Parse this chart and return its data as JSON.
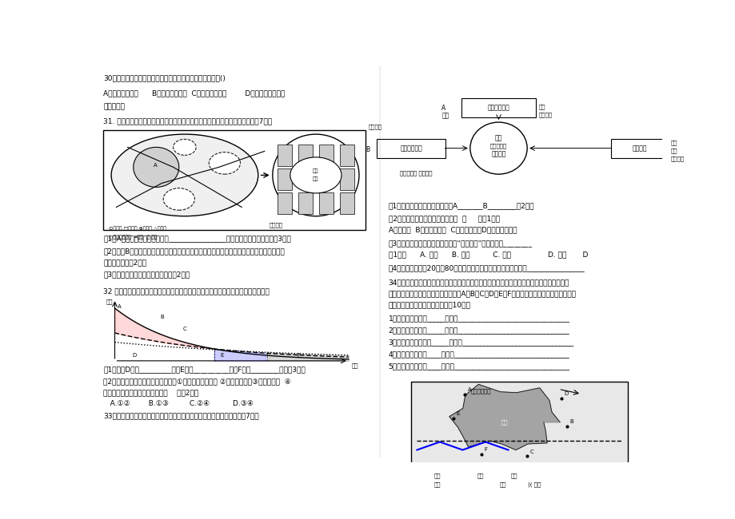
{
  "bg_color": "#ffffff",
  "text_color": "#000000",
  "page_width": 9.2,
  "page_height": 6.5,
  "q34_list": [
    "1、钉鐵厂应布局于_____，理由_______________________________",
    "2、造纸厂应布局于_____，理由_______________________________",
    "3、自来水厂应布局于_____，理由_______________________________",
    "4、啊酒厂应布局于____，理由________________________________",
    "5、服装厂应布局于____，理由________________________________"
  ]
}
